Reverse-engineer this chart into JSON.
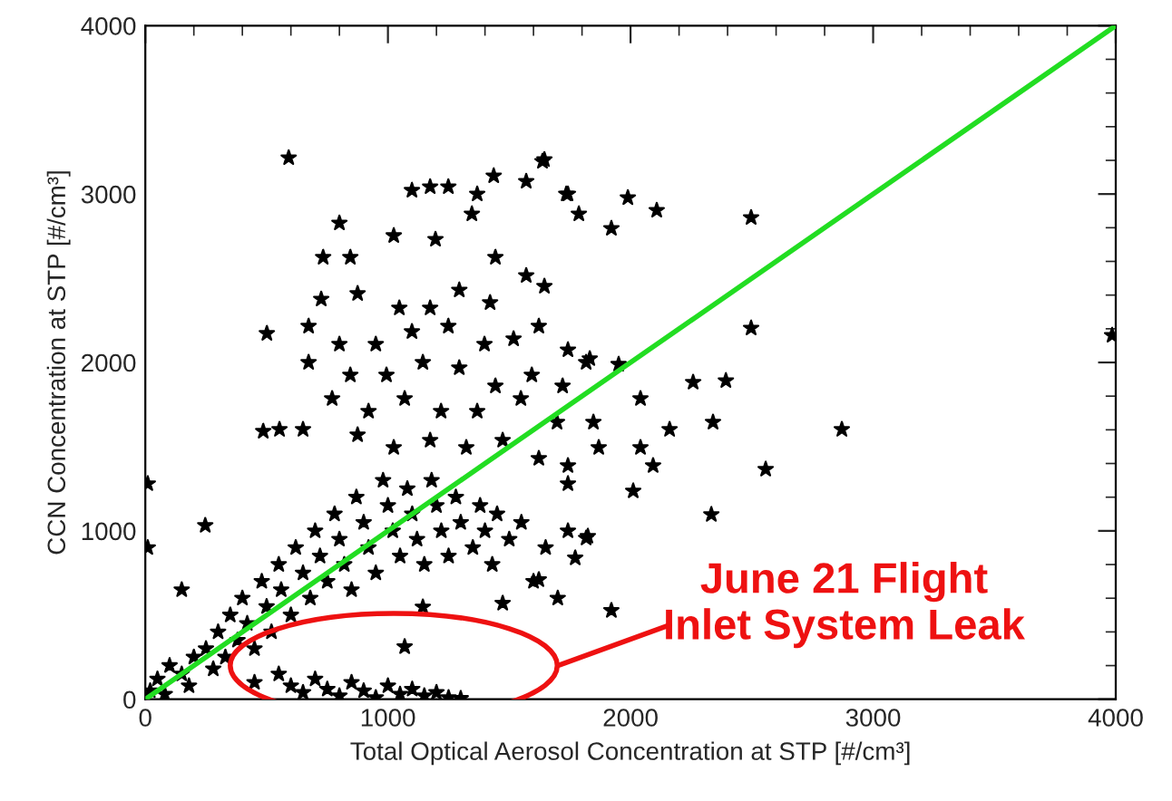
{
  "chart_data": {
    "type": "scatter",
    "xlabel": "Total Optical Aerosol Concentration at STP [#/cm³]",
    "ylabel": "CCN Concentration at STP [#/cm³]",
    "xlim": [
      0,
      4000
    ],
    "ylim": [
      0,
      4000
    ],
    "xticks": [
      0,
      1000,
      2000,
      3000,
      4000
    ],
    "yticks": [
      0,
      1000,
      2000,
      3000,
      4000
    ],
    "grid": false,
    "annotations": [
      "June 21 Flight\nInlet System Leak"
    ],
    "series": [
      {
        "color": "#000000",
        "marker": "star",
        "x": [
          20,
          50,
          80,
          100,
          150,
          180,
          200,
          250,
          280,
          300,
          330,
          350,
          380,
          400,
          420,
          450,
          480,
          500,
          520,
          550,
          560,
          600,
          620,
          650,
          680,
          700,
          720,
          750,
          780,
          800,
          820,
          850,
          870,
          900,
          920,
          950,
          980,
          1000,
          1020,
          1050,
          1080,
          1100,
          1120,
          1150,
          1180,
          1200,
          1220,
          1250,
          1280,
          1300,
          1350,
          1380,
          1400,
          1430,
          1450,
          1500,
          1550,
          1600,
          1650,
          1700,
          10,
          10,
          150,
          247,
          486,
          553,
          501,
          591,
          1099,
          1174,
          1249,
          1368,
          800,
          733,
          845,
          1024,
          1196,
          1346,
          1443,
          1570,
          1645,
          1742,
          725,
          875,
          1047,
          1174,
          1294,
          1421,
          1570,
          1645,
          673,
          800,
          950,
          1099,
          1249,
          1398,
          1518,
          1622,
          1742,
          673,
          845,
          994,
          1144,
          1294,
          1443,
          1593,
          1720,
          1817,
          770,
          920,
          1069,
          1219,
          1368,
          1548,
          1697,
          1847,
          1869,
          650,
          875,
          1024,
          1174,
          1323,
          1473,
          1622,
          1742,
          1742,
          1817,
          1772,
          1622,
          1473,
          1144,
          1069,
          1921,
          2497,
          2497,
          3985,
          2871,
          2557,
          2333,
          2011,
          1637,
          1436,
          1735,
          1989,
          2108,
          1921,
          1787,
          2393,
          2258,
          2041,
          1951,
          1832,
          2161,
          2340,
          2041,
          2093,
          1742,
          1824,
          450,
          550,
          600,
          650,
          700,
          750,
          800,
          850,
          900,
          950,
          1000,
          1050,
          1100,
          1150,
          1200,
          1250,
          1300
        ],
        "values": [
          50,
          120,
          30,
          200,
          150,
          80,
          250,
          300,
          180,
          400,
          250,
          500,
          350,
          600,
          450,
          300,
          700,
          550,
          400,
          800,
          650,
          500,
          900,
          750,
          600,
          1000,
          850,
          700,
          1100,
          950,
          800,
          650,
          1200,
          1050,
          900,
          750,
          1300,
          1150,
          1000,
          850,
          1250,
          1100,
          950,
          800,
          1300,
          1150,
          1000,
          850,
          1200,
          1050,
          900,
          1150,
          1000,
          800,
          1100,
          950,
          1050,
          700,
          900,
          600,
          1280,
          900,
          650,
          1032,
          1591,
          1602,
          2172,
          3215,
          3022,
          3043,
          3043,
          3000,
          2828,
          2624,
          2624,
          2753,
          2731,
          2882,
          2624,
          3075,
          3204,
          3000,
          2376,
          2409,
          2323,
          2323,
          2430,
          2355,
          2516,
          2452,
          2215,
          2108,
          2108,
          2183,
          2215,
          2108,
          2140,
          2215,
          2075,
          2000,
          1925,
          1925,
          2000,
          1968,
          1860,
          1925,
          1860,
          2000,
          1785,
          1710,
          1785,
          1710,
          1710,
          1785,
          1645,
          1645,
          1495,
          1602,
          1570,
          1495,
          1538,
          1495,
          1538,
          1430,
          1280,
          1000,
          957,
          839,
          710,
          570,
          548,
          312,
          527,
          2860,
          2204,
          2161,
          1602,
          1366,
          1097,
          1237,
          3194,
          3108,
          3000,
          2978,
          2903,
          2796,
          2882,
          1892,
          1882,
          1785,
          1989,
          2022,
          1602,
          1645,
          1495,
          1387,
          1387,
          968,
          100,
          150,
          80,
          40,
          120,
          60,
          20,
          100,
          50,
          10,
          80,
          30,
          60,
          20,
          40,
          10,
          5
        ]
      },
      {
        "type": "line",
        "color": "#22dd22",
        "x": [
          0,
          4000
        ],
        "values": [
          0,
          4000
        ]
      }
    ]
  }
}
